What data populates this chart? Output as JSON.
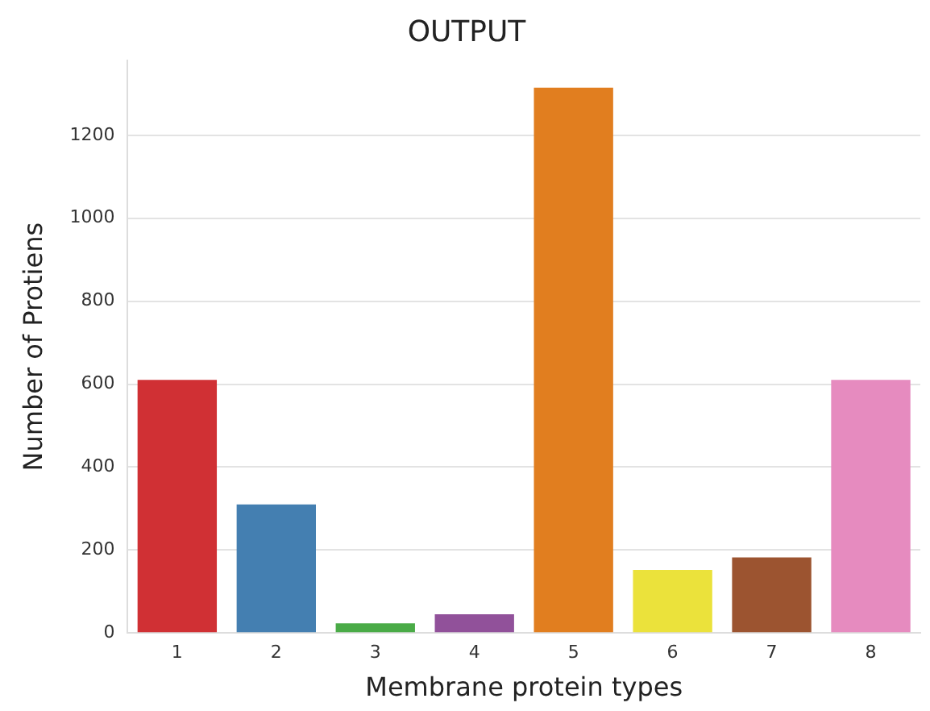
{
  "chart_data": {
    "type": "bar",
    "title": "OUTPUT",
    "xlabel": "Membrane protein types",
    "ylabel": "Number of Protiens",
    "categories": [
      "1",
      "2",
      "3",
      "4",
      "5",
      "6",
      "7",
      "8"
    ],
    "values": [
      610,
      310,
      23,
      45,
      1315,
      152,
      182,
      610
    ],
    "colors": [
      "#d03034",
      "#447fb1",
      "#4aab47",
      "#91519a",
      "#e17e1f",
      "#ebe23b",
      "#9c5430",
      "#e68bbf"
    ],
    "ylim": [
      0,
      1380
    ],
    "yticks": [
      0,
      200,
      400,
      600,
      800,
      1000,
      1200
    ],
    "grid": "y"
  }
}
